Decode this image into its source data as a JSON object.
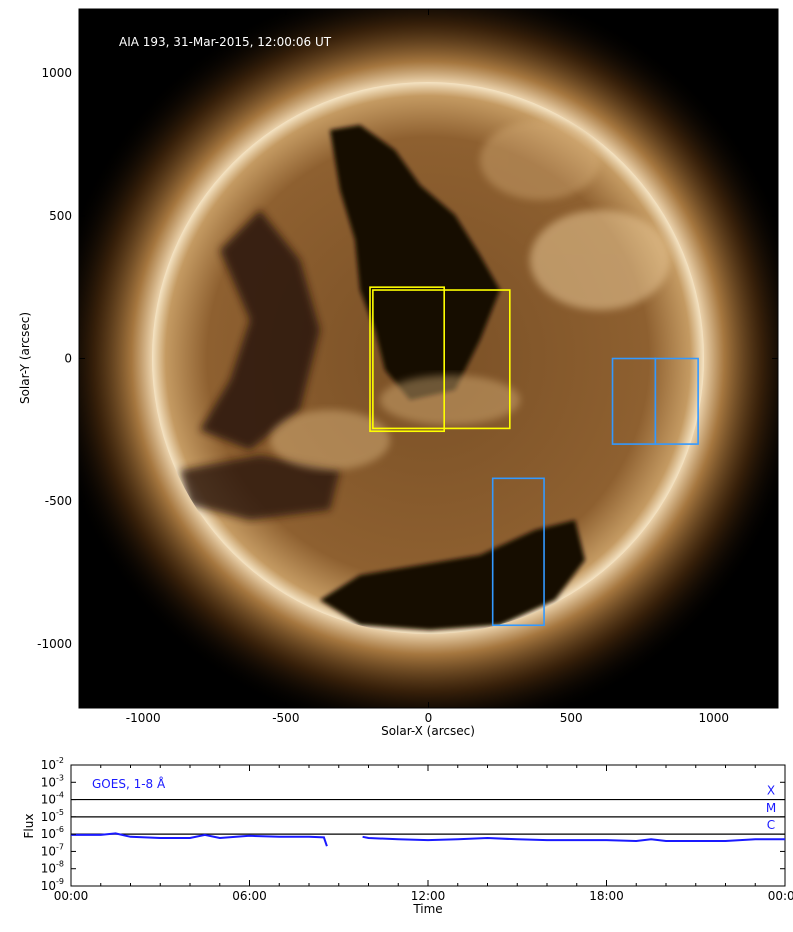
{
  "image": {
    "title": "AIA 193, 31-Mar-2015, 12:00:06 UT",
    "xlabel": "Solar-X (arcsec)",
    "ylabel": "Solar-Y (arcsec)",
    "x_ticks": [
      "-1000",
      "-500",
      "0",
      "500",
      "1000"
    ],
    "x_tick_values": [
      -1000,
      -500,
      0,
      500,
      1000
    ],
    "y_ticks": [
      "1000",
      "500",
      "0",
      "-500",
      "-1000"
    ],
    "y_tick_values": [
      1000,
      500,
      0,
      -500,
      -1000
    ],
    "xlim": [
      -1225,
      1225
    ],
    "ylim": [
      -1225,
      1225
    ],
    "boxes": [
      {
        "color": "#ffff00",
        "x": [
          -205,
          55
        ],
        "y": [
          -255,
          250
        ]
      },
      {
        "color": "#ffff00",
        "x": [
          -195,
          285
        ],
        "y": [
          -245,
          240
        ]
      },
      {
        "color": "#3399ff",
        "x": [
          645,
          795
        ],
        "y": [
          -300,
          0
        ]
      },
      {
        "color": "#3399ff",
        "x": [
          795,
          945
        ],
        "y": [
          -300,
          0
        ]
      },
      {
        "color": "#3399ff",
        "x": [
          225,
          405
        ],
        "y": [
          -935,
          -420
        ]
      }
    ]
  },
  "goes": {
    "label": "GOES, 1-8 Å",
    "ylabel": "Flux",
    "xlabel": "Time",
    "x_ticks": [
      "00:00",
      "06:00",
      "12:00",
      "18:00",
      "00:00"
    ],
    "y_ticks": [
      "10",
      "10",
      "10",
      "10",
      "10",
      "10",
      "10",
      "10"
    ],
    "y_exponents": [
      "-2",
      "-3",
      "-4",
      "-5",
      "-6",
      "-7",
      "-8",
      "-9"
    ],
    "class_labels": [
      "X",
      "M",
      "C"
    ],
    "line_color": "#1a1aff"
  },
  "chart_data": {
    "type": "line",
    "title": "",
    "label": "GOES, 1-8 Å",
    "xlabel": "Time",
    "ylabel": "Flux",
    "y_scale": "log",
    "ylim": [
      1e-09,
      0.01
    ],
    "xlim": [
      "00:00",
      "24:00"
    ],
    "thresholds": [
      {
        "label": "X",
        "value": 0.0001
      },
      {
        "label": "M",
        "value": 1e-05
      },
      {
        "label": "C",
        "value": 1e-06
      }
    ],
    "series": [
      {
        "x": [
          0,
          0.5,
          1,
          1.5,
          2,
          3,
          4,
          4.5,
          5,
          6,
          7,
          8,
          8.5,
          8.6,
          8.6,
          9.8,
          10,
          11,
          12,
          13,
          14,
          15,
          16,
          17,
          18,
          19,
          19.5,
          20,
          21,
          22,
          23,
          24
        ],
        "y": [
          9e-07,
          9e-07,
          9e-07,
          1.1e-06,
          7e-07,
          6e-07,
          6e-07,
          9e-07,
          6e-07,
          8e-07,
          7e-07,
          7e-07,
          6.5e-07,
          2e-07,
          null,
          7e-07,
          6e-07,
          5e-07,
          4.5e-07,
          5e-07,
          6e-07,
          5e-07,
          4.5e-07,
          4.5e-07,
          4.5e-07,
          4e-07,
          5e-07,
          4e-07,
          4e-07,
          4e-07,
          5e-07,
          5e-07
        ]
      }
    ]
  }
}
